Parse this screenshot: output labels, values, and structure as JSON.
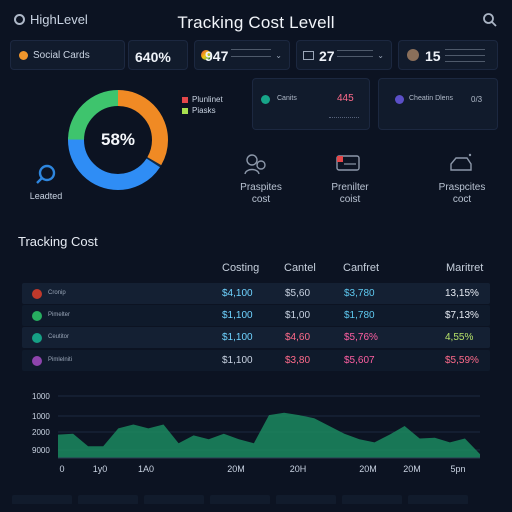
{
  "app": {
    "brand": "HighLevel",
    "title": "Tracking Cost Levell",
    "search_icon": "search-icon"
  },
  "kpis": [
    {
      "label": "Social Cards",
      "value": "",
      "dot_color": "#f0962c"
    },
    {
      "label": "",
      "value": "640%"
    },
    {
      "label": "",
      "value": "947"
    },
    {
      "label": "",
      "value": "27"
    },
    {
      "label": "",
      "value": "15"
    }
  ],
  "donut": {
    "center": "58%",
    "legend": [
      {
        "label": "Plunlinet",
        "color": "#e4474a"
      },
      {
        "label": "Piasks",
        "color": "#a8e04f"
      }
    ],
    "link_label": "Leadted"
  },
  "stats": [
    {
      "label": "Canits",
      "value": "445",
      "dot": "#17a589"
    },
    {
      "label": "Cheatin Dlens",
      "value": "0/3",
      "dot": "#5b4fc7"
    }
  ],
  "tiles": [
    {
      "line1": "Praspites",
      "line2": "cost"
    },
    {
      "line1": "Prenilter",
      "line2": "coist"
    },
    {
      "line1": "Praspcites",
      "line2": "coct"
    }
  ],
  "table": {
    "title": "Tracking Cost",
    "headers": [
      "Costing",
      "Cantel",
      "Canfret",
      "Maritret"
    ],
    "rows": [
      {
        "name": "Cronip",
        "c1": "$4,100",
        "c2": "$5,60",
        "c3": "$3,780",
        "c4": "13,15%",
        "icon": "#c0392b",
        "c1_color": "#6fd3ff",
        "c2_color": "#c9d3e2",
        "c3_color": "#5ec9f0",
        "c4_color": "#e6ebf3"
      },
      {
        "name": "Pimelter",
        "c1": "$1,100",
        "c2": "$1,00",
        "c3": "$1,780",
        "c4": "$7,13%",
        "icon": "#27ae60",
        "c1_color": "#6fd3ff",
        "c2_color": "#c9d3e2",
        "c3_color": "#5ec9f0",
        "c4_color": "#e6ebf3"
      },
      {
        "name": "Ceutitor",
        "c1": "$1,100",
        "c2": "$4,60",
        "c3": "$5,76%",
        "c4": "4,55%",
        "icon": "#16a085",
        "c1_color": "#6fd3ff",
        "c2_color": "#ff6b8b",
        "c3_color": "#ff5fa2",
        "c4_color": "#b7e36a"
      },
      {
        "name": "Pimlelniti",
        "c1": "$1,100",
        "c2": "$3,80",
        "c3": "$5,607",
        "c4": "$5,59%",
        "icon": "#8e44ad",
        "c1_color": "#c9d3e2",
        "c2_color": "#ff6b8b",
        "c3_color": "#ff5fa2",
        "c4_color": "#ff6b8b"
      }
    ]
  },
  "chart_data": {
    "type": "area",
    "title": "",
    "xlabel": "",
    "ylabel": "",
    "y_ticks": [
      "1000",
      "1000",
      "2000",
      "9000"
    ],
    "x_ticks": [
      "0",
      "1y0",
      "1A0",
      "20M",
      "20H",
      "20M",
      "20M",
      "5pn"
    ],
    "values": [
      0.3,
      0.31,
      0.15,
      0.15,
      0.38,
      0.43,
      0.38,
      0.43,
      0.19,
      0.29,
      0.24,
      0.31,
      0.24,
      0.19,
      0.55,
      0.58,
      0.55,
      0.51,
      0.41,
      0.31,
      0.24,
      0.2,
      0.3,
      0.41,
      0.25,
      0.26,
      0.2,
      0.25,
      0.05
    ],
    "fill": "#1b8a5f",
    "grid": true
  }
}
